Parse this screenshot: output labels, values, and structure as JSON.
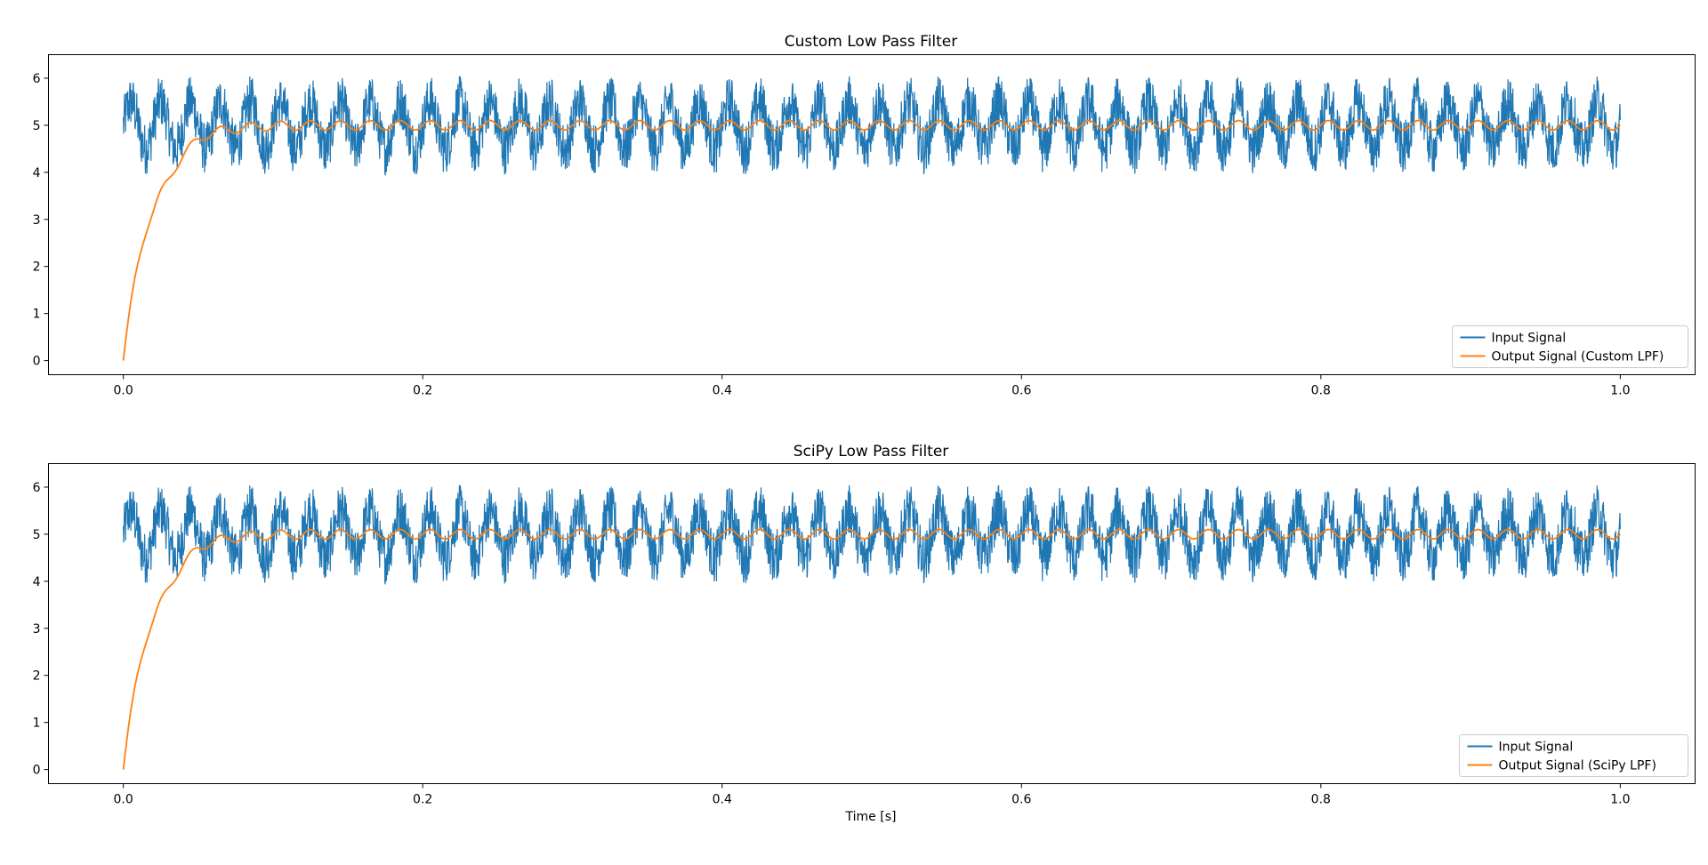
{
  "chart_data": [
    {
      "type": "line",
      "title": "Custom Low Pass Filter",
      "xlabel": "",
      "ylabel": "",
      "xlim": [
        -0.05,
        1.05
      ],
      "ylim": [
        -0.3,
        6.5
      ],
      "xticks": [
        0.0,
        0.2,
        0.4,
        0.6,
        0.8,
        1.0
      ],
      "xtick_labels": [
        "0.0",
        "0.2",
        "0.4",
        "0.6",
        "0.8",
        "1.0"
      ],
      "yticks": [
        0,
        1,
        2,
        3,
        4,
        5,
        6
      ],
      "ytick_labels": [
        "0",
        "1",
        "2",
        "3",
        "4",
        "5",
        "6"
      ],
      "grid": false,
      "legend": "lower-right",
      "series": [
        {
          "name": "Input Signal",
          "color": "#1f77b4",
          "signal": {
            "offset": 5,
            "components": [
              {
                "freq_hz": 50,
                "amplitude": 0.5
              }
            ],
            "noise_amplitude": 0.55
          },
          "x_range": [
            0,
            1
          ]
        },
        {
          "name": "Output Signal (Custom LPF)",
          "color": "#ff7f0e",
          "initial_value": 0,
          "settles_to": 5,
          "ripple_amplitude": 0.1,
          "ripple_freq_hz": 50,
          "settle_time_s": 0.07,
          "x_range": [
            0,
            1
          ]
        }
      ]
    },
    {
      "type": "line",
      "title": "SciPy Low Pass Filter",
      "xlabel": "Time [s]",
      "ylabel": "",
      "xlim": [
        -0.05,
        1.05
      ],
      "ylim": [
        -0.3,
        6.5
      ],
      "xticks": [
        0.0,
        0.2,
        0.4,
        0.6,
        0.8,
        1.0
      ],
      "xtick_labels": [
        "0.0",
        "0.2",
        "0.4",
        "0.6",
        "0.8",
        "1.0"
      ],
      "yticks": [
        0,
        1,
        2,
        3,
        4,
        5,
        6
      ],
      "ytick_labels": [
        "0",
        "1",
        "2",
        "3",
        "4",
        "5",
        "6"
      ],
      "grid": false,
      "legend": "lower-right",
      "series": [
        {
          "name": "Input Signal",
          "color": "#1f77b4",
          "signal": {
            "offset": 5,
            "components": [
              {
                "freq_hz": 50,
                "amplitude": 0.5
              }
            ],
            "noise_amplitude": 0.55
          },
          "x_range": [
            0,
            1
          ]
        },
        {
          "name": "Output Signal (SciPy LPF)",
          "color": "#ff7f0e",
          "initial_value": 0,
          "settles_to": 5,
          "ripple_amplitude": 0.1,
          "ripple_freq_hz": 50,
          "settle_time_s": 0.07,
          "x_range": [
            0,
            1
          ]
        }
      ]
    }
  ]
}
